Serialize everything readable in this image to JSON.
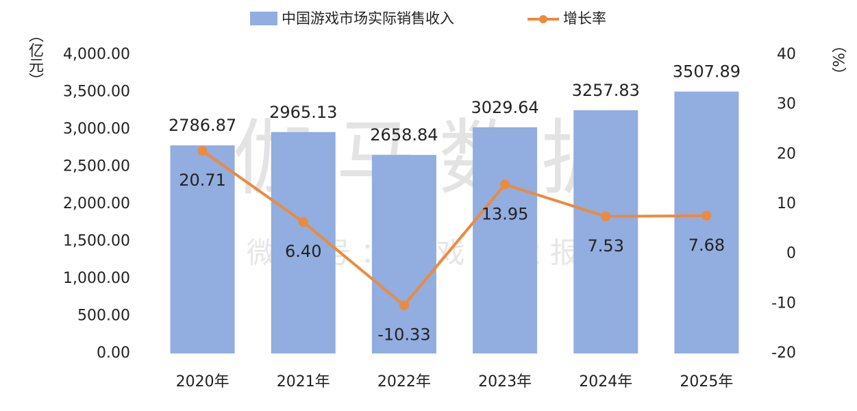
{
  "chart_data": {
    "type": "bar_line",
    "watermark": "伽马数据",
    "watermark_sub": "微 信 号 ： 游 戏 产 业 报 告",
    "y_label": "（亿元）",
    "y2_label": "（%）",
    "categories": [
      "2020年",
      "2021年",
      "2022年",
      "2023年",
      "2024年",
      "2025年"
    ],
    "series": [
      {
        "name": "中国游戏市场实际销售收入",
        "type": "bar",
        "color": "#92addf",
        "values": [
          2786.87,
          2965.13,
          2658.84,
          3029.64,
          3257.83,
          3507.89
        ]
      },
      {
        "name": "增长率",
        "type": "line",
        "color": "#ec8a3d",
        "axis": "y2",
        "values": [
          20.71,
          6.4,
          -10.33,
          13.95,
          7.53,
          7.68
        ],
        "value_labels": [
          "20.71",
          "6.40",
          "-10.33",
          "13.95",
          "7.53",
          "7.68"
        ]
      }
    ],
    "ylim": [
      0,
      4000
    ],
    "yticks": [
      {
        "value": 0,
        "label": "0.00"
      },
      {
        "value": 500,
        "label": "500.00"
      },
      {
        "value": 1000,
        "label": "1,000.00"
      },
      {
        "value": 1500,
        "label": "1,500.00"
      },
      {
        "value": 2000,
        "label": "2,000.00"
      },
      {
        "value": 2500,
        "label": "2,500.00"
      },
      {
        "value": 3000,
        "label": "3,000.00"
      },
      {
        "value": 3500,
        "label": "3,500.00"
      },
      {
        "value": 4000,
        "label": "4,000.00"
      }
    ],
    "y2lim": [
      -20,
      40
    ],
    "y2ticks": [
      -20,
      -10,
      0,
      10,
      20,
      30,
      40
    ],
    "grid": false
  }
}
